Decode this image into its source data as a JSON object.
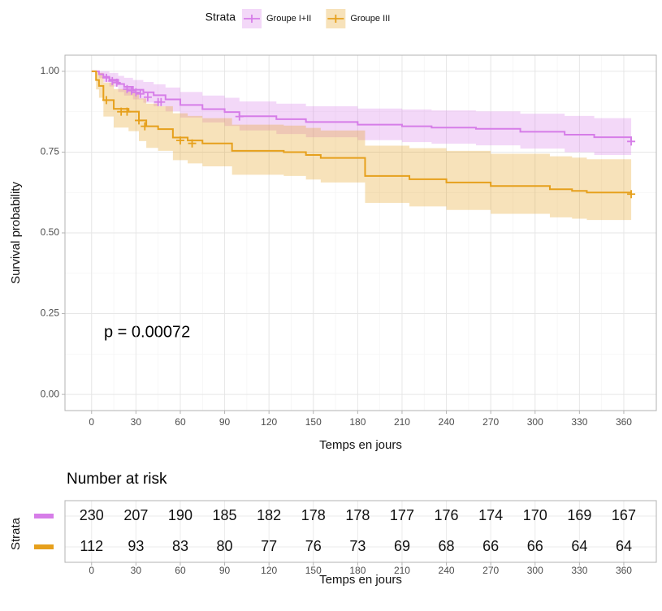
{
  "chart_data": [
    {
      "type": "survival",
      "legend_title": "Strata",
      "legend_position": "top",
      "x_label": "Temps en jours",
      "y_label": "Survival probability",
      "annotation": "p = 0.00072",
      "xlim": [
        -18,
        382
      ],
      "ylim": [
        -0.05,
        1.05
      ],
      "xticks": [
        0,
        30,
        60,
        90,
        120,
        150,
        180,
        210,
        240,
        270,
        300,
        330,
        360
      ],
      "yticks": [
        {
          "value": 0,
          "label": "0.00"
        },
        {
          "value": 0.25,
          "label": "0.25"
        },
        {
          "value": 0.5,
          "label": "0.50"
        },
        {
          "value": 0.75,
          "label": "0.75"
        },
        {
          "value": 1,
          "label": "1.00"
        }
      ],
      "grid": true,
      "series": [
        {
          "name": "Groupe I+II",
          "color": "#d67de8",
          "x": [
            0,
            5,
            8,
            12,
            18,
            22,
            28,
            35,
            42,
            50,
            60,
            75,
            90,
            100,
            125,
            145,
            180,
            210,
            230,
            260,
            290,
            320,
            340,
            365
          ],
          "values": [
            1,
            0.991,
            0.983,
            0.974,
            0.961,
            0.952,
            0.943,
            0.935,
            0.926,
            0.913,
            0.896,
            0.883,
            0.874,
            0.861,
            0.852,
            0.843,
            0.835,
            0.83,
            0.826,
            0.822,
            0.813,
            0.804,
            0.796,
            0.783
          ],
          "upper": [
            1,
            1,
            1,
            0.995,
            0.986,
            0.98,
            0.973,
            0.967,
            0.96,
            0.95,
            0.936,
            0.925,
            0.918,
            0.907,
            0.9,
            0.892,
            0.885,
            0.882,
            0.879,
            0.876,
            0.869,
            0.862,
            0.855,
            0.845
          ],
          "lower": [
            1,
            0.979,
            0.966,
            0.953,
            0.936,
            0.925,
            0.913,
            0.903,
            0.892,
            0.876,
            0.857,
            0.842,
            0.831,
            0.817,
            0.806,
            0.796,
            0.787,
            0.781,
            0.776,
            0.771,
            0.761,
            0.75,
            0.741,
            0.735
          ],
          "censored": {
            "x": [
              10,
              14,
              17,
              24,
              27,
              30,
              33,
              38,
              45,
              47,
              100,
              365
            ],
            "y": [
              0.98,
              0.97,
              0.965,
              0.945,
              0.94,
              0.935,
              0.93,
              0.92,
              0.905,
              0.905,
              0.86,
              0.783
            ]
          }
        },
        {
          "name": "Groupe III",
          "color": "#e6a01c",
          "x": [
            0,
            3,
            5,
            8,
            15,
            25,
            32,
            37,
            45,
            55,
            65,
            75,
            95,
            130,
            145,
            155,
            185,
            215,
            240,
            270,
            310,
            325,
            335,
            365
          ],
          "values": [
            1,
            0.973,
            0.955,
            0.911,
            0.884,
            0.875,
            0.848,
            0.83,
            0.821,
            0.795,
            0.786,
            0.777,
            0.754,
            0.75,
            0.741,
            0.732,
            0.676,
            0.666,
            0.656,
            0.645,
            0.635,
            0.63,
            0.625,
            0.625
          ],
          "upper": [
            1,
            1,
            0.995,
            0.965,
            0.945,
            0.937,
            0.916,
            0.9,
            0.892,
            0.87,
            0.862,
            0.855,
            0.835,
            0.832,
            0.825,
            0.817,
            0.77,
            0.762,
            0.754,
            0.745,
            0.737,
            0.733,
            0.728,
            0.728
          ],
          "lower": [
            1,
            0.944,
            0.918,
            0.86,
            0.826,
            0.815,
            0.784,
            0.763,
            0.754,
            0.725,
            0.715,
            0.706,
            0.68,
            0.676,
            0.665,
            0.656,
            0.593,
            0.582,
            0.571,
            0.559,
            0.548,
            0.544,
            0.54,
            0.54
          ],
          "censored": {
            "x": [
              10,
              20,
              24,
              32,
              36,
              60,
              68,
              365
            ],
            "y": [
              0.911,
              0.875,
              0.875,
              0.848,
              0.83,
              0.786,
              0.777,
              0.62
            ]
          }
        }
      ]
    },
    {
      "type": "risk-table",
      "title": "Number at risk",
      "y_label": "Strata",
      "x_label": "Temps en jours",
      "xlim": [
        -18,
        382
      ],
      "xticks": [
        0,
        30,
        60,
        90,
        120,
        150,
        180,
        210,
        240,
        270,
        300,
        330,
        360
      ],
      "series": [
        {
          "color": "#d67de8",
          "values": [
            230,
            207,
            190,
            185,
            182,
            178,
            178,
            177,
            176,
            174,
            170,
            169,
            167
          ]
        },
        {
          "color": "#e6a01c",
          "values": [
            112,
            93,
            83,
            80,
            77,
            76,
            73,
            69,
            68,
            66,
            66,
            64,
            64
          ]
        }
      ]
    }
  ]
}
